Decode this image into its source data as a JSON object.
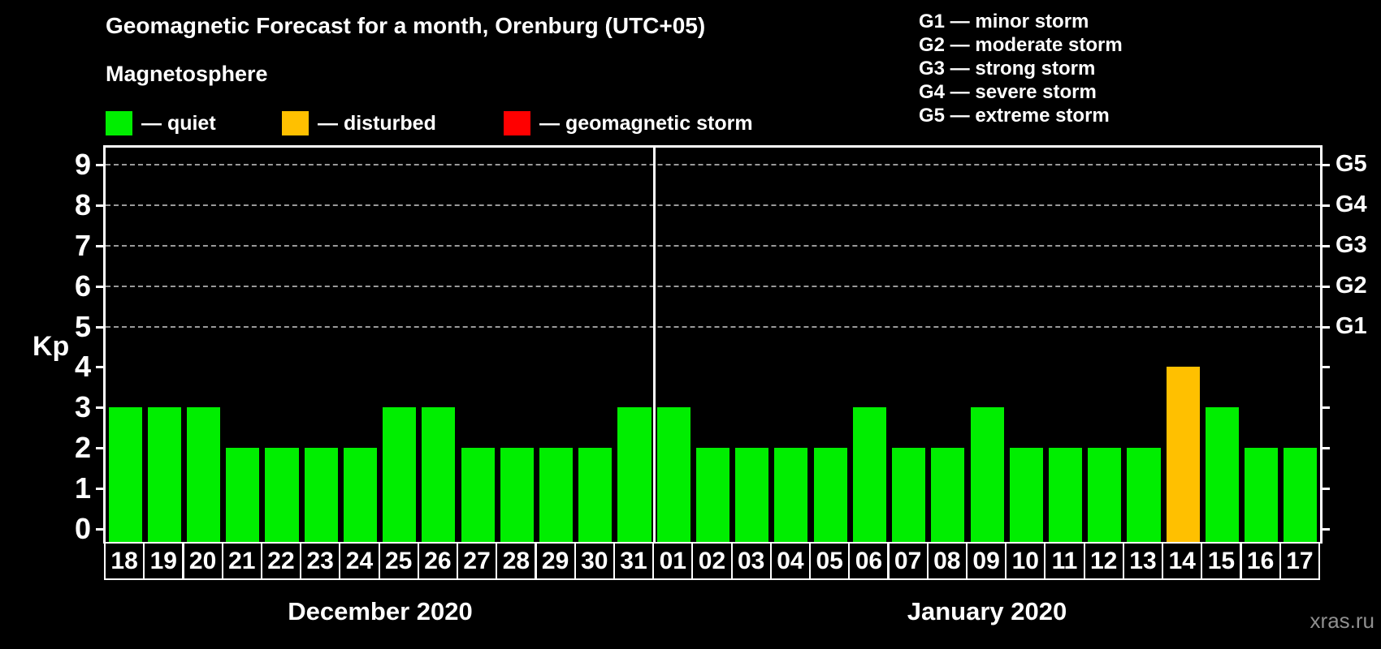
{
  "title": "Geomagnetic Forecast for a month, Orenburg (UTC+05)",
  "subtitle": "Magnetosphere",
  "magnetosphere_legend": [
    {
      "key": "quiet",
      "label": "— quiet",
      "color": "#00EE00"
    },
    {
      "key": "disturbed",
      "label": "— disturbed",
      "color": "#FFC000"
    },
    {
      "key": "storm",
      "label": "— geomagnetic storm",
      "color": "#FF0000"
    }
  ],
  "g_scale_legend": [
    "G1 — minor storm",
    "G2 — moderate storm",
    "G3 — strong storm",
    "G4 — severe storm",
    "G5 — extreme storm"
  ],
  "watermark": "xras.ru",
  "chart_data": {
    "type": "bar",
    "ylabel": "Kp",
    "ylim": [
      0,
      9
    ],
    "yticks": [
      0,
      1,
      2,
      3,
      4,
      5,
      6,
      7,
      8,
      9
    ],
    "grid_levels": [
      5,
      6,
      7,
      8,
      9
    ],
    "right_axis": [
      {
        "kp": 5,
        "label": "G1"
      },
      {
        "kp": 6,
        "label": "G2"
      },
      {
        "kp": 7,
        "label": "G3"
      },
      {
        "kp": 8,
        "label": "G4"
      },
      {
        "kp": 9,
        "label": "G5"
      }
    ],
    "status_colors": {
      "quiet": "#00EE00",
      "disturbed": "#FFC000",
      "storm": "#FF0000"
    },
    "months": [
      {
        "label": "December 2020",
        "days": [
          {
            "day": "18",
            "kp": 3,
            "status": "quiet"
          },
          {
            "day": "19",
            "kp": 3,
            "status": "quiet"
          },
          {
            "day": "20",
            "kp": 3,
            "status": "quiet"
          },
          {
            "day": "21",
            "kp": 2,
            "status": "quiet"
          },
          {
            "day": "22",
            "kp": 2,
            "status": "quiet"
          },
          {
            "day": "23",
            "kp": 2,
            "status": "quiet"
          },
          {
            "day": "24",
            "kp": 2,
            "status": "quiet"
          },
          {
            "day": "25",
            "kp": 3,
            "status": "quiet"
          },
          {
            "day": "26",
            "kp": 3,
            "status": "quiet"
          },
          {
            "day": "27",
            "kp": 2,
            "status": "quiet"
          },
          {
            "day": "28",
            "kp": 2,
            "status": "quiet"
          },
          {
            "day": "29",
            "kp": 2,
            "status": "quiet"
          },
          {
            "day": "30",
            "kp": 2,
            "status": "quiet"
          },
          {
            "day": "31",
            "kp": 3,
            "status": "quiet"
          }
        ]
      },
      {
        "label": "January 2020",
        "days": [
          {
            "day": "01",
            "kp": 3,
            "status": "quiet"
          },
          {
            "day": "02",
            "kp": 2,
            "status": "quiet"
          },
          {
            "day": "03",
            "kp": 2,
            "status": "quiet"
          },
          {
            "day": "04",
            "kp": 2,
            "status": "quiet"
          },
          {
            "day": "05",
            "kp": 2,
            "status": "quiet"
          },
          {
            "day": "06",
            "kp": 3,
            "status": "quiet"
          },
          {
            "day": "07",
            "kp": 2,
            "status": "quiet"
          },
          {
            "day": "08",
            "kp": 2,
            "status": "quiet"
          },
          {
            "day": "09",
            "kp": 3,
            "status": "quiet"
          },
          {
            "day": "10",
            "kp": 2,
            "status": "quiet"
          },
          {
            "day": "11",
            "kp": 2,
            "status": "quiet"
          },
          {
            "day": "12",
            "kp": 2,
            "status": "quiet"
          },
          {
            "day": "13",
            "kp": 2,
            "status": "quiet"
          },
          {
            "day": "14",
            "kp": 4,
            "status": "disturbed"
          },
          {
            "day": "15",
            "kp": 3,
            "status": "quiet"
          },
          {
            "day": "16",
            "kp": 2,
            "status": "quiet"
          },
          {
            "day": "17",
            "kp": 2,
            "status": "quiet"
          }
        ]
      }
    ]
  }
}
